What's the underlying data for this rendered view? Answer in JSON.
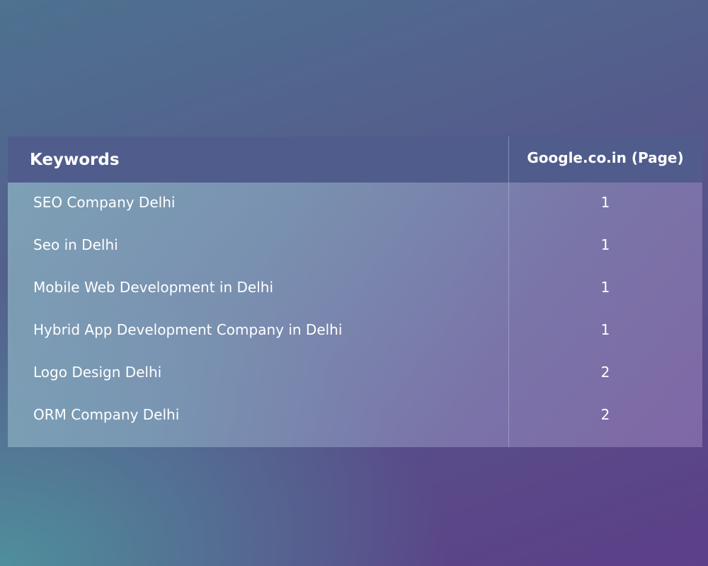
{
  "table": {
    "headers": {
      "keywords": "Keywords",
      "page": "Google.co.in (Page)"
    },
    "rows": [
      {
        "keyword": "SEO Company Delhi",
        "page": "1"
      },
      {
        "keyword": "Seo in Delhi",
        "page": "1"
      },
      {
        "keyword": "Mobile Web Development in Delhi",
        "page": "1"
      },
      {
        "keyword": "Hybrid App Development Company in Delhi",
        "page": "1"
      },
      {
        "keyword": "Logo Design Delhi",
        "page": "2"
      },
      {
        "keyword": "ORM Company Delhi",
        "page": "2"
      }
    ]
  }
}
